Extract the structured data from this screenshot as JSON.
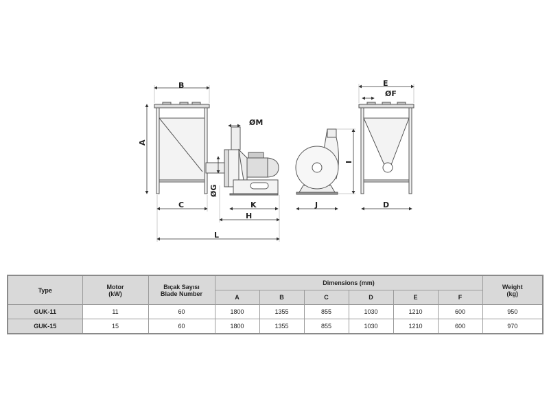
{
  "drawing": {
    "labels": {
      "A": "A",
      "B": "B",
      "C": "C",
      "D": "D",
      "E": "E",
      "F": "ØF",
      "G": "ØG",
      "H": "H",
      "I": "I",
      "J": "J",
      "K": "K",
      "L": "L",
      "M": "ØM"
    }
  },
  "table": {
    "headers": {
      "type": "Type",
      "motor": [
        "Motor",
        "(kW)"
      ],
      "blade": [
        "Bıçak Sayısı",
        "Blade Number"
      ],
      "dimensions": "Dimensions (mm)",
      "dim_columns": [
        "A",
        "B",
        "C",
        "D",
        "E",
        "F"
      ],
      "weight": [
        "Weight",
        "(kg)"
      ]
    },
    "rows": [
      {
        "type": "GUK-11",
        "motor": "11",
        "blade": "60",
        "dims": [
          "1800",
          "1355",
          "855",
          "1030",
          "1210",
          "600"
        ],
        "weight": "950"
      },
      {
        "type": "GUK-15",
        "motor": "15",
        "blade": "60",
        "dims": [
          "1800",
          "1355",
          "855",
          "1030",
          "1210",
          "600"
        ],
        "weight": "970"
      }
    ]
  },
  "colors": {
    "header_bg": "#d9d9d9",
    "border": "#9a9a9a"
  }
}
